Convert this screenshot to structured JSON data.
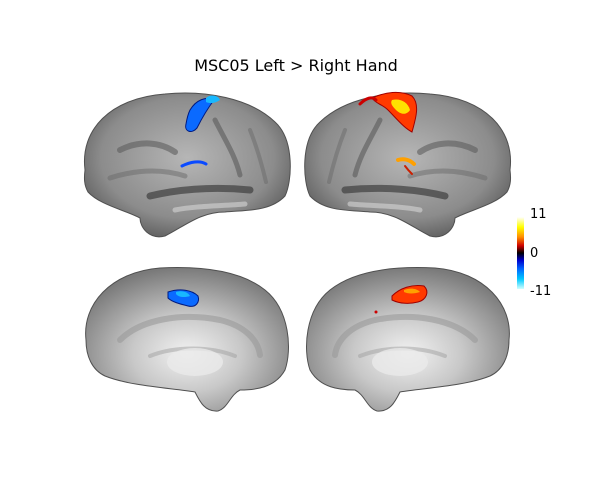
{
  "figure": {
    "title": "MSC05 Left > Right Hand",
    "views": [
      {
        "id": "left-lateral",
        "icon": "brain-lateral-left"
      },
      {
        "id": "right-lateral",
        "icon": "brain-lateral-right"
      },
      {
        "id": "left-medial",
        "icon": "brain-medial-left"
      },
      {
        "id": "right-medial",
        "icon": "brain-medial-right"
      }
    ],
    "colorbar": {
      "max_label": "11",
      "mid_label": "0",
      "min_label": "-11",
      "colors": {
        "positive_high": "#ffff00",
        "positive_mid": "#ff8c00",
        "positive_low": "#cc0000",
        "zero": "#000000",
        "negative_low": "#0000cc",
        "negative_mid": "#0066ff",
        "negative_high": "#00ffff"
      }
    }
  }
}
